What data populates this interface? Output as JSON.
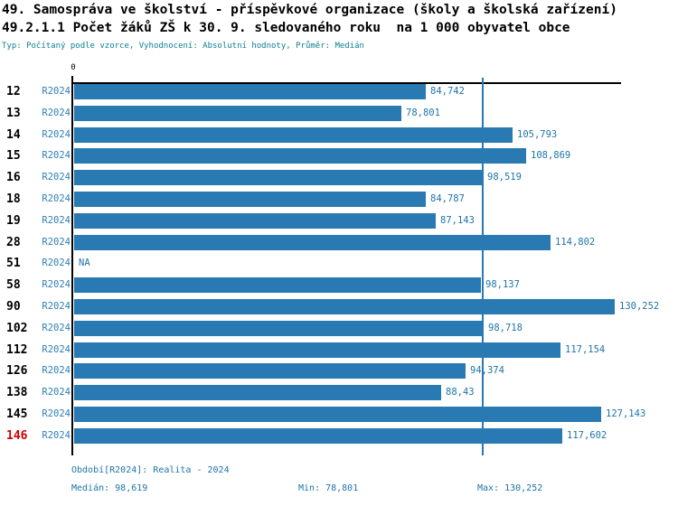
{
  "chart_data": {
    "type": "bar",
    "orientation": "horizontal",
    "title": "49. Samospráva ve školství - příspěvkové organizace (školy a školská zařízení)",
    "subtitle": "49.2.1.1 Počet žáků ZŠ k 30. 9. sledovaného roku  na 1 000 obyvatel obce",
    "meta_line": "Typ: Počítaný podle vzorce, Vyhodnocení: Absolutní hodnoty, Průměr: Medián",
    "series_name": "R2024",
    "categories": [
      "12",
      "13",
      "14",
      "15",
      "16",
      "18",
      "19",
      "28",
      "51",
      "58",
      "90",
      "102",
      "112",
      "126",
      "138",
      "145",
      "146"
    ],
    "values": [
      84.742,
      78.801,
      105.793,
      108.869,
      98.519,
      84.787,
      87.143,
      114.802,
      null,
      98.137,
      130.252,
      98.718,
      117.154,
      94.374,
      88.43,
      127.143,
      117.602
    ],
    "value_labels": [
      "84,742",
      "78,801",
      "105,793",
      "108,869",
      "98,519",
      "84,787",
      "87,143",
      "114,802",
      "NA",
      "98,137",
      "130,252",
      "98,718",
      "117,154",
      "94,374",
      "88,43",
      "127,143",
      "117,602"
    ],
    "na_label": "NA",
    "highlight_category": "146",
    "x_zero_label": "0",
    "xlim": [
      0,
      131.85
    ],
    "grid": false,
    "legend_position": "none",
    "median": {
      "value": 98.619,
      "label": "Medián: 98,619"
    },
    "min": {
      "value": 78.801,
      "label": "Min: 78,801"
    },
    "max": {
      "value": 130.252,
      "label": "Max: 130,252"
    },
    "period_label": "Období[R2024]: Realita - 2024",
    "colors": {
      "bar": "#2979b3",
      "median_line": "#2979b3",
      "value_text": "#1e74a8",
      "series_text": "#2e7fb8",
      "meta_text": "#0b7f90",
      "highlight_text": "#cc0000",
      "axis": "#000000"
    }
  }
}
